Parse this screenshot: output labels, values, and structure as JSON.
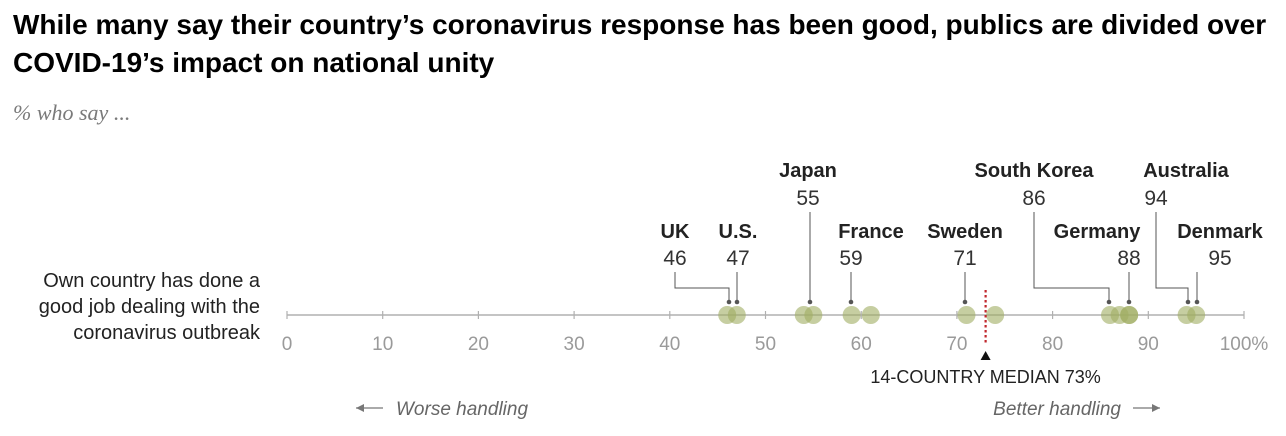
{
  "title": "While many say their country’s coronavirus response has been good, publics are divided over COVID-19’s impact on national unity",
  "subtitle": "% who say ...",
  "row_label": [
    "Own country has done a",
    "good job dealing with the",
    "coronavirus outbreak"
  ],
  "chart_data": {
    "type": "scatter",
    "title": "While many say their country’s coronavirus response has been good, publics are divided over COVID-19’s impact on national unity",
    "subtitle": "% who say ...",
    "xlim": [
      0,
      100
    ],
    "ticks": [
      0,
      10,
      20,
      30,
      40,
      50,
      60,
      70,
      80,
      90,
      100
    ],
    "tick_labels": [
      "0",
      "10",
      "20",
      "30",
      "40",
      "50",
      "60",
      "70",
      "80",
      "90",
      "100%"
    ],
    "points": [
      {
        "value": 46,
        "country": "UK",
        "labeled": true
      },
      {
        "value": 47,
        "country": "U.S.",
        "labeled": true
      },
      {
        "value": 54,
        "labeled": false
      },
      {
        "value": 55,
        "country": "Japan",
        "labeled": true
      },
      {
        "value": 59,
        "country": "France",
        "labeled": true
      },
      {
        "value": 61,
        "labeled": false
      },
      {
        "value": 71,
        "country": "Sweden",
        "labeled": true
      },
      {
        "value": 74,
        "labeled": false
      },
      {
        "value": 86,
        "country": "South Korea",
        "labeled": true
      },
      {
        "value": 87,
        "labeled": false
      },
      {
        "value": 88,
        "country": "Germany",
        "labeled": true
      },
      {
        "value": 88,
        "labeled": false
      },
      {
        "value": 94,
        "country": "Australia",
        "labeled": true
      },
      {
        "value": 95,
        "country": "Denmark",
        "labeled": true
      }
    ],
    "median": {
      "value": 73,
      "label": "14-COUNTRY MEDIAN 73%"
    },
    "annotations": {
      "left": "Worse handling",
      "right": "Better handling"
    },
    "colors": {
      "dot": "#a0ad63",
      "median_line": "#c0282d",
      "axis": "#b0b0b0",
      "tick_label": "#9a9a9a"
    }
  }
}
